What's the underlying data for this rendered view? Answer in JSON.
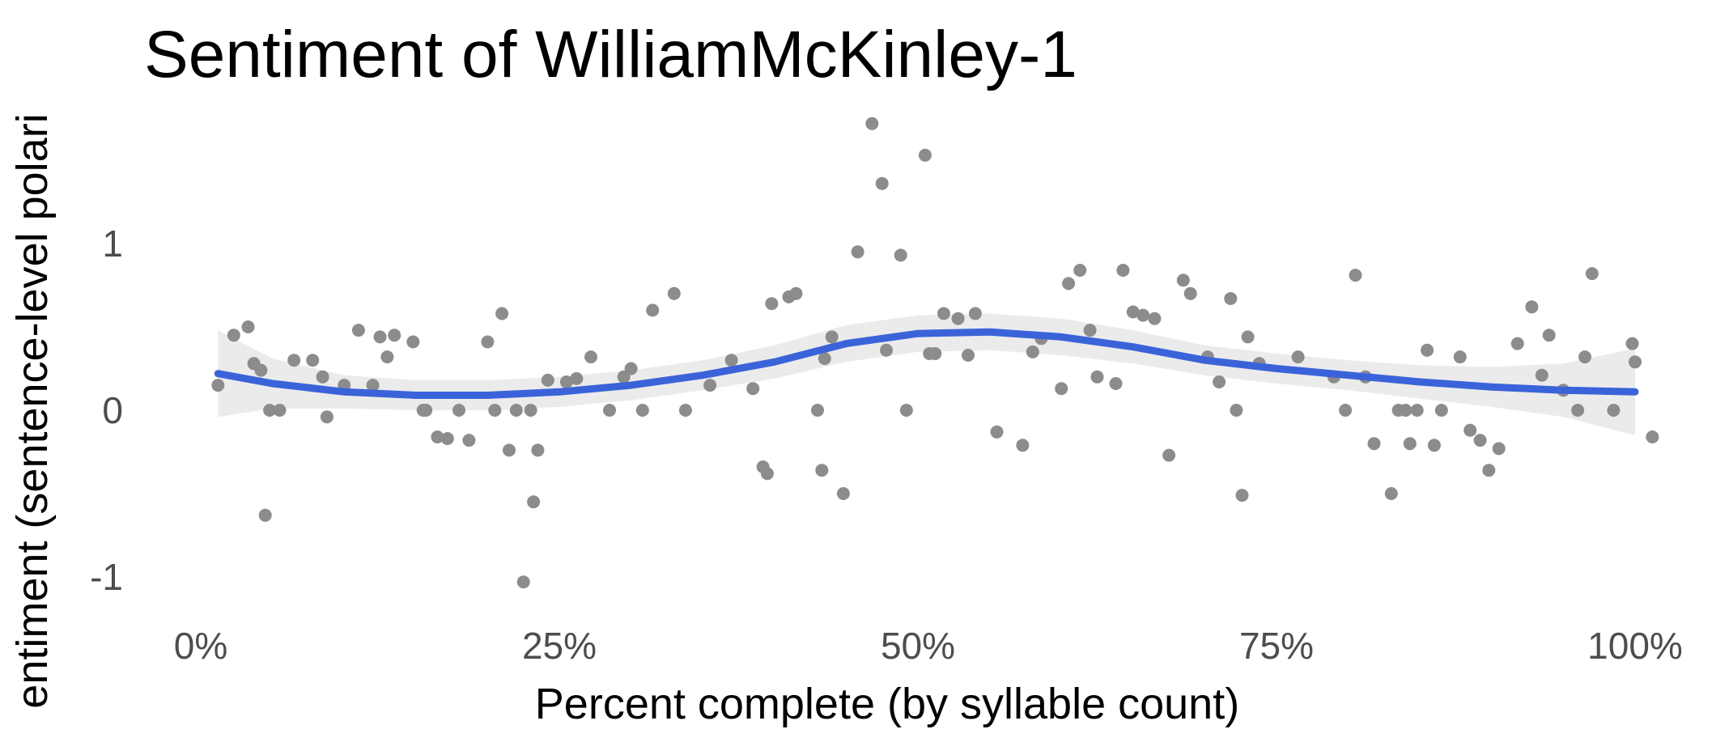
{
  "chart_data": {
    "type": "scatter",
    "title": "Sentiment of WilliamMcKinley-1",
    "xlabel": "Percent complete (by syllable count)",
    "ylabel": "entiment (sentence-level polari",
    "xlim": [
      0,
      1
    ],
    "ylim": [
      -1.15,
      1.75
    ],
    "x_ticks": [
      0,
      0.25,
      0.5,
      0.75,
      1.0
    ],
    "x_tick_labels": [
      "0%",
      "25%",
      "50%",
      "75%",
      "100%"
    ],
    "y_ticks": [
      -1,
      0,
      1
    ],
    "y_tick_labels": [
      "-1",
      "0",
      "1"
    ],
    "grid": false,
    "points": [
      [
        0.012,
        0.15
      ],
      [
        0.023,
        0.45
      ],
      [
        0.033,
        0.5
      ],
      [
        0.037,
        0.28
      ],
      [
        0.042,
        0.24
      ],
      [
        0.045,
        -0.63
      ],
      [
        0.048,
        0.0
      ],
      [
        0.055,
        0.0
      ],
      [
        0.065,
        0.3
      ],
      [
        0.078,
        0.3
      ],
      [
        0.085,
        0.2
      ],
      [
        0.088,
        -0.04
      ],
      [
        0.1,
        0.15
      ],
      [
        0.11,
        0.48
      ],
      [
        0.12,
        0.15
      ],
      [
        0.125,
        0.44
      ],
      [
        0.13,
        0.32
      ],
      [
        0.135,
        0.45
      ],
      [
        0.148,
        0.41
      ],
      [
        0.155,
        0.0
      ],
      [
        0.157,
        0.0
      ],
      [
        0.165,
        -0.16
      ],
      [
        0.172,
        -0.17
      ],
      [
        0.18,
        0.0
      ],
      [
        0.187,
        -0.18
      ],
      [
        0.2,
        0.41
      ],
      [
        0.205,
        0.0
      ],
      [
        0.21,
        0.58
      ],
      [
        0.215,
        -0.24
      ],
      [
        0.22,
        0.0
      ],
      [
        0.225,
        -1.03
      ],
      [
        0.23,
        0.0
      ],
      [
        0.232,
        -0.55
      ],
      [
        0.235,
        -0.24
      ],
      [
        0.242,
        0.18
      ],
      [
        0.255,
        0.17
      ],
      [
        0.262,
        0.19
      ],
      [
        0.272,
        0.32
      ],
      [
        0.285,
        0.0
      ],
      [
        0.295,
        0.2
      ],
      [
        0.3,
        0.25
      ],
      [
        0.308,
        0.0
      ],
      [
        0.315,
        0.6
      ],
      [
        0.33,
        0.7
      ],
      [
        0.338,
        0.0
      ],
      [
        0.355,
        0.15
      ],
      [
        0.37,
        0.3
      ],
      [
        0.385,
        0.13
      ],
      [
        0.392,
        -0.34
      ],
      [
        0.395,
        -0.38
      ],
      [
        0.398,
        0.64
      ],
      [
        0.41,
        0.68
      ],
      [
        0.415,
        0.7
      ],
      [
        0.43,
        0.0
      ],
      [
        0.433,
        -0.36
      ],
      [
        0.435,
        0.31
      ],
      [
        0.44,
        0.44
      ],
      [
        0.448,
        -0.5
      ],
      [
        0.458,
        0.95
      ],
      [
        0.468,
        1.72
      ],
      [
        0.475,
        1.36
      ],
      [
        0.478,
        0.36
      ],
      [
        0.488,
        0.93
      ],
      [
        0.492,
        0.0
      ],
      [
        0.505,
        1.53
      ],
      [
        0.508,
        0.34
      ],
      [
        0.512,
        0.34
      ],
      [
        0.518,
        0.58
      ],
      [
        0.528,
        0.55
      ],
      [
        0.535,
        0.33
      ],
      [
        0.54,
        0.58
      ],
      [
        0.555,
        -0.13
      ],
      [
        0.573,
        -0.21
      ],
      [
        0.58,
        0.35
      ],
      [
        0.586,
        0.43
      ],
      [
        0.6,
        0.13
      ],
      [
        0.605,
        0.76
      ],
      [
        0.613,
        0.84
      ],
      [
        0.62,
        0.48
      ],
      [
        0.625,
        0.2
      ],
      [
        0.638,
        0.16
      ],
      [
        0.643,
        0.84
      ],
      [
        0.65,
        0.59
      ],
      [
        0.657,
        0.57
      ],
      [
        0.665,
        0.55
      ],
      [
        0.675,
        -0.27
      ],
      [
        0.685,
        0.78
      ],
      [
        0.69,
        0.7
      ],
      [
        0.702,
        0.32
      ],
      [
        0.71,
        0.17
      ],
      [
        0.718,
        0.67
      ],
      [
        0.722,
        0.0
      ],
      [
        0.726,
        -0.51
      ],
      [
        0.73,
        0.44
      ],
      [
        0.738,
        0.28
      ],
      [
        0.765,
        0.32
      ],
      [
        0.79,
        0.2
      ],
      [
        0.798,
        0.0
      ],
      [
        0.805,
        0.81
      ],
      [
        0.812,
        0.2
      ],
      [
        0.818,
        -0.2
      ],
      [
        0.83,
        -0.5
      ],
      [
        0.835,
        0.0
      ],
      [
        0.84,
        0.0
      ],
      [
        0.843,
        -0.2
      ],
      [
        0.848,
        0.0
      ],
      [
        0.855,
        0.36
      ],
      [
        0.86,
        -0.21
      ],
      [
        0.865,
        0.0
      ],
      [
        0.878,
        0.32
      ],
      [
        0.885,
        -0.12
      ],
      [
        0.892,
        -0.18
      ],
      [
        0.898,
        -0.36
      ],
      [
        0.905,
        -0.23
      ],
      [
        0.918,
        0.4
      ],
      [
        0.928,
        0.62
      ],
      [
        0.935,
        0.21
      ],
      [
        0.94,
        0.45
      ],
      [
        0.95,
        0.12
      ],
      [
        0.96,
        0.0
      ],
      [
        0.965,
        0.32
      ],
      [
        0.97,
        0.82
      ],
      [
        0.985,
        0.0
      ],
      [
        0.998,
        0.4
      ],
      [
        1.0,
        0.29
      ],
      [
        1.012,
        -0.16
      ]
    ],
    "trend_line": {
      "x": [
        0.012,
        0.05,
        0.1,
        0.15,
        0.2,
        0.25,
        0.3,
        0.35,
        0.4,
        0.45,
        0.5,
        0.55,
        0.6,
        0.65,
        0.7,
        0.75,
        0.8,
        0.85,
        0.9,
        0.95,
        1.0
      ],
      "y": [
        0.22,
        0.16,
        0.11,
        0.09,
        0.09,
        0.11,
        0.15,
        0.21,
        0.29,
        0.4,
        0.46,
        0.47,
        0.44,
        0.38,
        0.3,
        0.25,
        0.21,
        0.17,
        0.14,
        0.12,
        0.11
      ],
      "ci_width": [
        0.26,
        0.15,
        0.1,
        0.09,
        0.09,
        0.09,
        0.09,
        0.09,
        0.1,
        0.11,
        0.11,
        0.11,
        0.11,
        0.1,
        0.09,
        0.09,
        0.09,
        0.1,
        0.12,
        0.16,
        0.26
      ]
    },
    "point_color": "#8c8c8c",
    "line_color": "#3b63d9",
    "ci_color": "#ebebeb"
  }
}
